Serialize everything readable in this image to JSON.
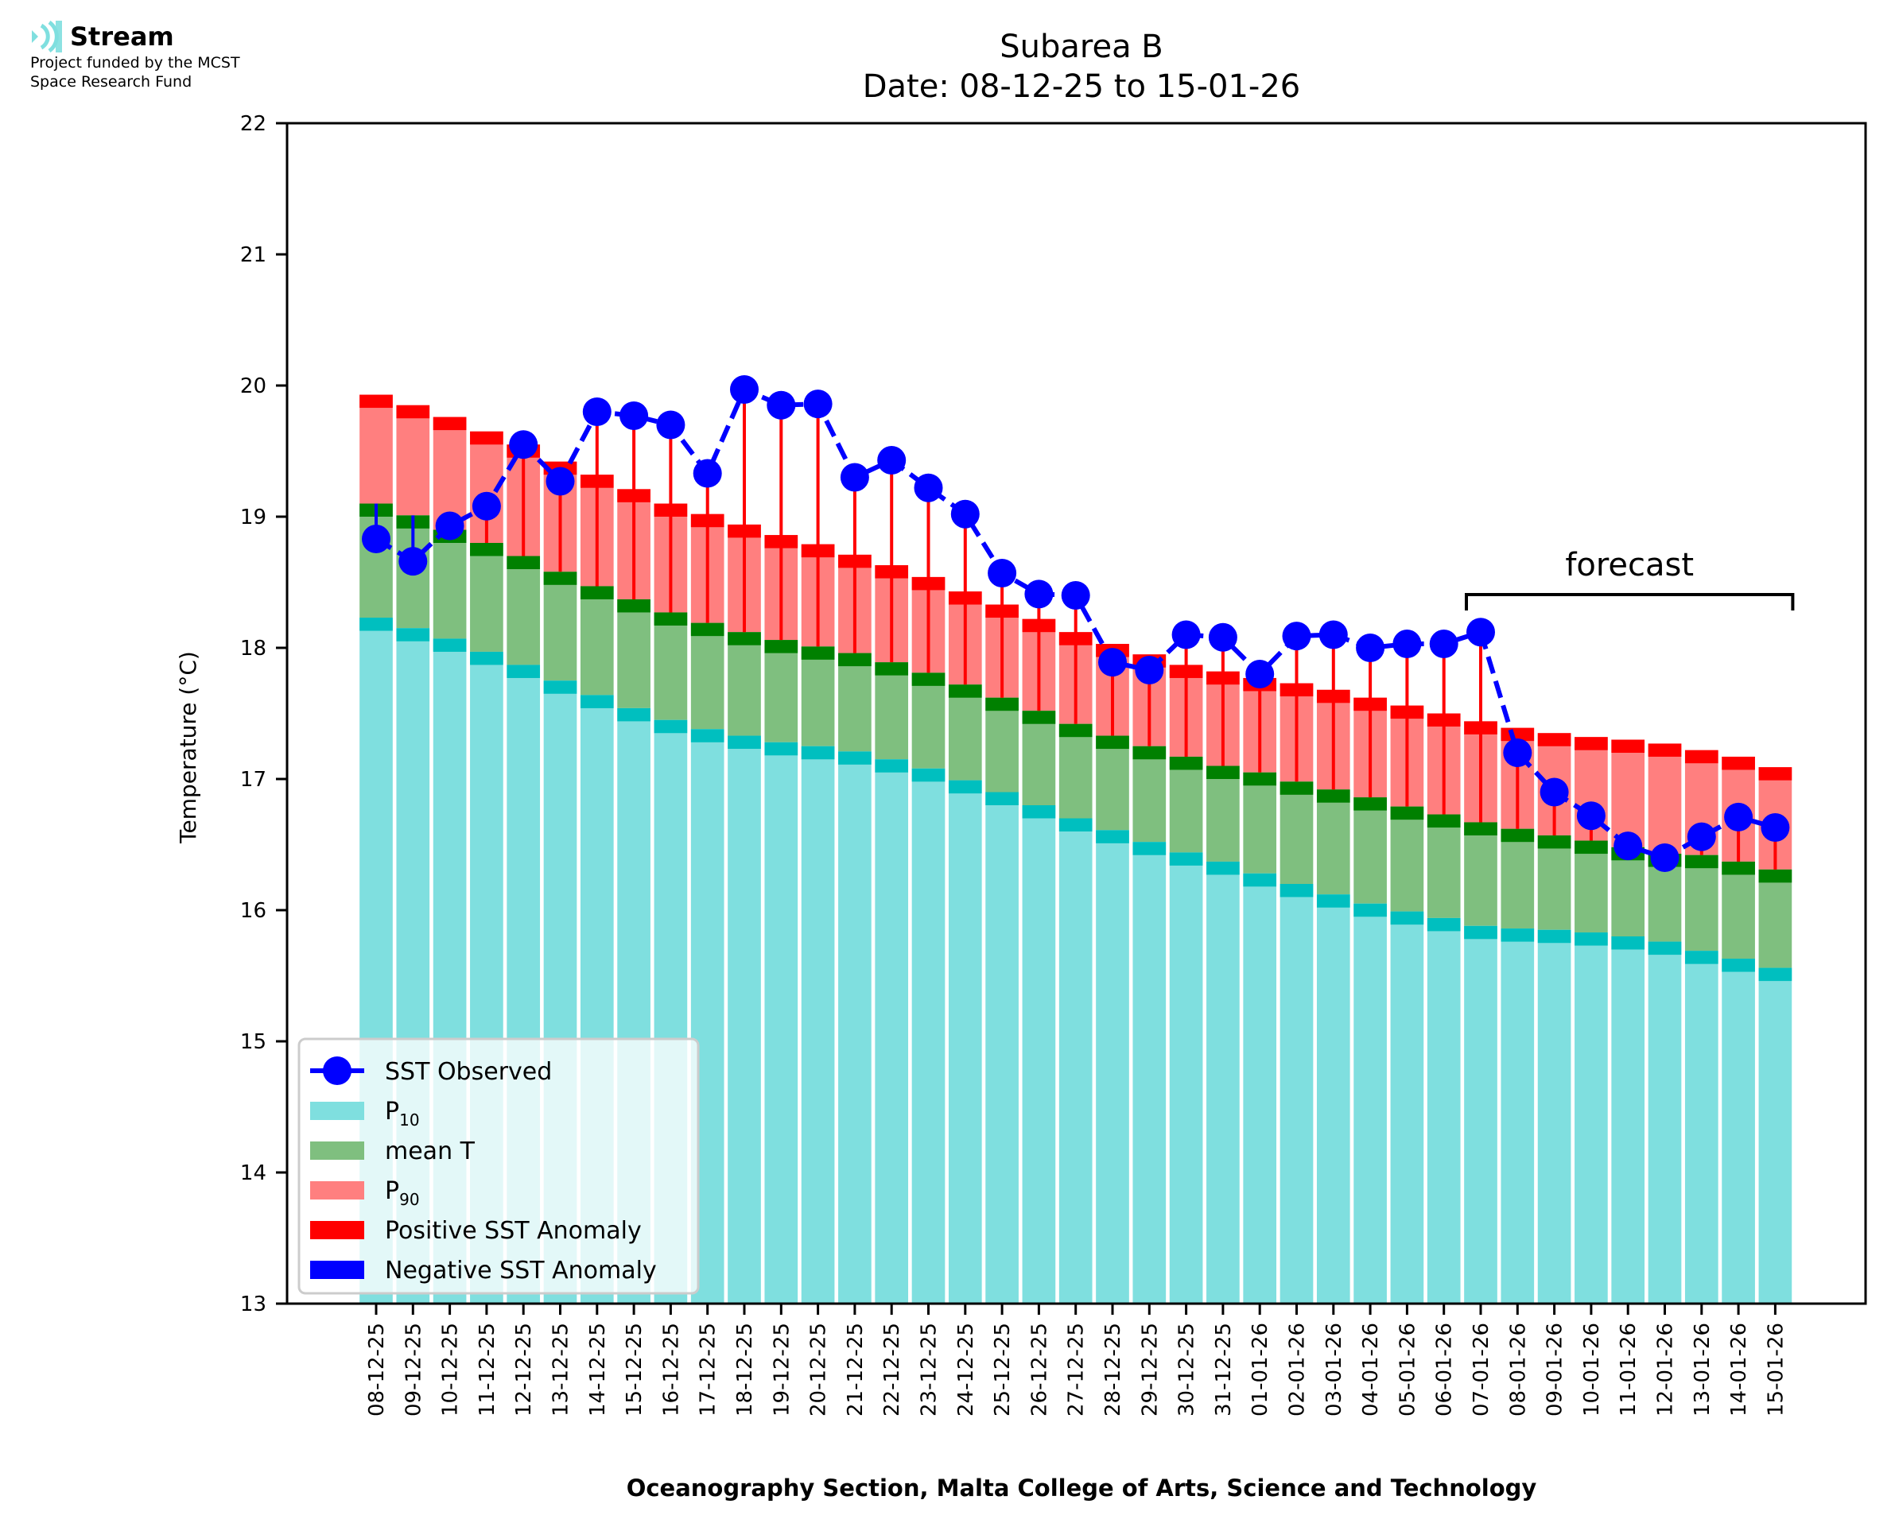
{
  "logo": {
    "icon": "stream-waves-icon",
    "name": "Stream",
    "funding_line1": "Project funded by the MCST",
    "funding_line2": "Space Research Fund"
  },
  "chart_data": {
    "type": "bar",
    "title": "Subarea B",
    "subtitle": "Date: 08-12-25 to 15-01-26",
    "xlabel": "Oceanography Section, Malta College of Arts, Science and Technology",
    "ylabel": "Temperature (°C)",
    "ylim": [
      13,
      22
    ],
    "yticks": [
      13,
      14,
      15,
      16,
      17,
      18,
      19,
      20,
      21,
      22
    ],
    "grid": false,
    "legend_position": "bottom-left",
    "annotation": {
      "text": "forecast",
      "from_category": "07-01-26",
      "to_category": "15-01-26"
    },
    "legend": [
      {
        "label": "SST Observed",
        "kind": "line-marker",
        "color": "#0000ff"
      },
      {
        "label": "P",
        "sub": "10",
        "kind": "patch",
        "color": "#7fdfdf"
      },
      {
        "label": "mean T",
        "kind": "patch",
        "color": "#7fbf7f"
      },
      {
        "label": "P",
        "sub": "90",
        "kind": "patch",
        "color": "#ff7f7f"
      },
      {
        "label": "Positive SST Anomaly",
        "kind": "patch",
        "color": "#ff0000"
      },
      {
        "label": "Negative SST Anomaly",
        "kind": "patch",
        "color": "#0000ff"
      }
    ],
    "colors": {
      "p10": "#7fdfdf",
      "p10_edge": "#00bfbf",
      "mean": "#7fbf7f",
      "mean_edge": "#008000",
      "p90": "#ff7f7f",
      "p90_edge": "#ff0000",
      "observed": "#0000ff",
      "positive_anomaly": "#ff0000",
      "negative_anomaly": "#0000ff"
    },
    "categories": [
      "08-12-25",
      "09-12-25",
      "10-12-25",
      "11-12-25",
      "12-12-25",
      "13-12-25",
      "14-12-25",
      "15-12-25",
      "16-12-25",
      "17-12-25",
      "18-12-25",
      "19-12-25",
      "20-12-25",
      "21-12-25",
      "22-12-25",
      "23-12-25",
      "24-12-25",
      "25-12-25",
      "26-12-25",
      "27-12-25",
      "28-12-25",
      "29-12-25",
      "30-12-25",
      "31-12-25",
      "01-01-26",
      "02-01-26",
      "03-01-26",
      "04-01-26",
      "05-01-26",
      "06-01-26",
      "07-01-26",
      "08-01-26",
      "09-01-26",
      "10-01-26",
      "11-01-26",
      "12-01-26",
      "13-01-26",
      "14-01-26",
      "15-01-26"
    ],
    "series": [
      {
        "name": "P10",
        "values": [
          18.23,
          18.15,
          18.07,
          17.97,
          17.87,
          17.75,
          17.64,
          17.54,
          17.45,
          17.38,
          17.33,
          17.28,
          17.25,
          17.21,
          17.15,
          17.08,
          16.99,
          16.9,
          16.8,
          16.7,
          16.61,
          16.52,
          16.44,
          16.37,
          16.28,
          16.2,
          16.12,
          16.05,
          15.99,
          15.94,
          15.88,
          15.86,
          15.85,
          15.83,
          15.8,
          15.76,
          15.69,
          15.63,
          15.56
        ]
      },
      {
        "name": "mean T",
        "values": [
          19.1,
          19.01,
          18.9,
          18.8,
          18.7,
          18.58,
          18.47,
          18.37,
          18.27,
          18.19,
          18.12,
          18.06,
          18.01,
          17.96,
          17.89,
          17.81,
          17.72,
          17.62,
          17.52,
          17.42,
          17.33,
          17.25,
          17.17,
          17.1,
          17.05,
          16.98,
          16.92,
          16.86,
          16.79,
          16.73,
          16.67,
          16.62,
          16.57,
          16.53,
          16.48,
          16.43,
          16.42,
          16.37,
          16.31
        ]
      },
      {
        "name": "P90",
        "values": [
          19.93,
          19.85,
          19.76,
          19.65,
          19.55,
          19.42,
          19.32,
          19.21,
          19.1,
          19.02,
          18.94,
          18.86,
          18.79,
          18.71,
          18.63,
          18.54,
          18.43,
          18.33,
          18.22,
          18.12,
          18.03,
          17.95,
          17.87,
          17.82,
          17.77,
          17.73,
          17.68,
          17.62,
          17.56,
          17.5,
          17.44,
          17.39,
          17.35,
          17.32,
          17.3,
          17.27,
          17.22,
          17.17,
          17.09
        ]
      },
      {
        "name": "SST Observed",
        "values": [
          18.83,
          18.66,
          18.93,
          19.08,
          19.55,
          19.27,
          19.8,
          19.77,
          19.7,
          19.33,
          19.97,
          19.85,
          19.86,
          19.3,
          19.43,
          19.22,
          19.02,
          18.57,
          18.41,
          18.4,
          17.89,
          17.83,
          18.1,
          18.08,
          17.8,
          18.09,
          18.1,
          18.0,
          18.03,
          18.03,
          18.12,
          17.2,
          16.9,
          16.72,
          16.49,
          16.4,
          16.56,
          16.71,
          16.63
        ]
      }
    ]
  }
}
